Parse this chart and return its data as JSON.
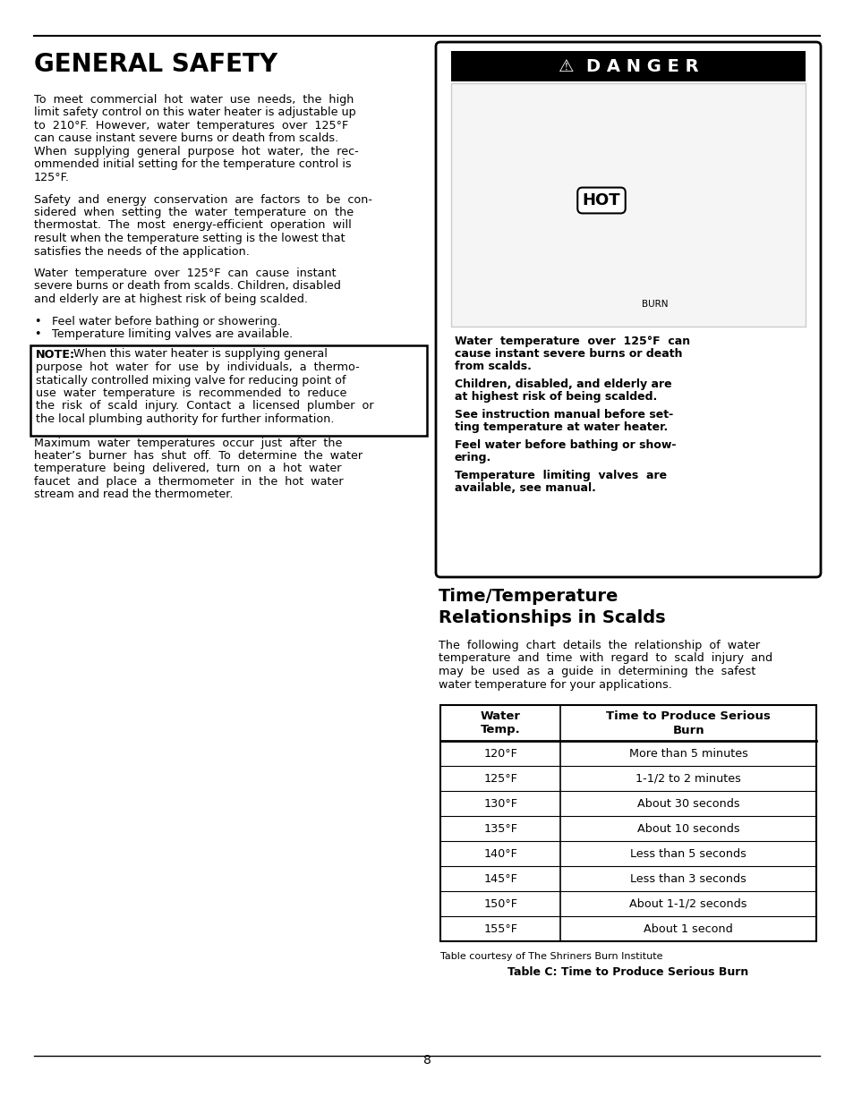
{
  "page_bg": "#ffffff",
  "page_num": "8",
  "title_general_safety": "GENERAL SAFETY",
  "left_para1_lines": [
    "To  meet  commercial  hot  water  use  needs,  the  high",
    "limit safety control on this water heater is adjustable up",
    "to  210°F.  However,  water  temperatures  over  125°F",
    "can cause instant severe burns or death from scalds.",
    "When  supplying  general  purpose  hot  water,  the  rec-",
    "ommended initial setting for the temperature control is",
    "125°F."
  ],
  "left_para2_lines": [
    "Safety  and  energy  conservation  are  factors  to  be  con-",
    "sidered  when  setting  the  water  temperature  on  the",
    "thermostat.  The  most  energy-efficient  operation  will",
    "result when the temperature setting is the lowest that",
    "satisfies the needs of the application."
  ],
  "left_para3_lines": [
    "Water  temperature  over  125°F  can  cause  instant",
    "severe burns or death from scalds. Children, disabled",
    "and elderly are at highest risk of being scalded."
  ],
  "bullet1": "Feel water before bathing or showering.",
  "bullet2": "Temperature limiting valves are available.",
  "note_bold": "NOTE:",
  "note_lines": [
    " When this water heater is supplying general",
    "purpose  hot  water  for  use  by  individuals,  a  thermo-",
    "statically controlled mixing valve for reducing point of",
    "use  water  temperature  is  recommended  to  reduce",
    "the  risk  of  scald  injury.  Contact  a  licensed  plumber  or",
    "the local plumbing authority for further information."
  ],
  "left_para4_lines": [
    "Maximum  water  temperatures  occur  just  after  the",
    "heater’s  burner  has  shut  off.  To  determine  the  water",
    "temperature  being  delivered,  turn  on  a  hot  water",
    "faucet  and  place  a  thermometer  in  the  hot  water",
    "stream and read the thermometer."
  ],
  "danger_label": "⚠  D A N G E R",
  "danger_warn1_lines": [
    "Water  temperature  over  125°F  can",
    "cause instant severe burns or death",
    "from scalds."
  ],
  "danger_warn2_lines": [
    "Children, disabled, and elderly are",
    "at highest risk of being scalded."
  ],
  "danger_warn3_lines": [
    "See instruction manual before set-",
    "ting temperature at water heater."
  ],
  "danger_warn4_lines": [
    "Feel water before bathing or show-",
    "ering."
  ],
  "danger_warn5_lines": [
    "Temperature  limiting  valves  are",
    "available, see manual."
  ],
  "section2_title": "Time/Temperature\nRelationships in Scalds",
  "section2_para_lines": [
    "The  following  chart  details  the  relationship  of  water",
    "temperature  and  time  with  regard  to  scald  injury  and",
    "may  be  used  as  a  guide  in  determining  the  safest",
    "water temperature for your applications."
  ],
  "table_header1": "Water\nTemp.",
  "table_header2": "Time to Produce Serious\nBurn",
  "table_rows": [
    [
      "120°F",
      "More than 5 minutes"
    ],
    [
      "125°F",
      "1-1/2 to 2 minutes"
    ],
    [
      "130°F",
      "About 30 seconds"
    ],
    [
      "135°F",
      "About 10 seconds"
    ],
    [
      "140°F",
      "Less than 5 seconds"
    ],
    [
      "145°F",
      "Less than 3 seconds"
    ],
    [
      "150°F",
      "About 1-1/2 seconds"
    ],
    [
      "155°F",
      "About 1 second"
    ]
  ],
  "table_caption1": "Table courtesy of The Shriners Burn Institute",
  "table_caption2": "Table C: Time to Produce Serious Burn"
}
